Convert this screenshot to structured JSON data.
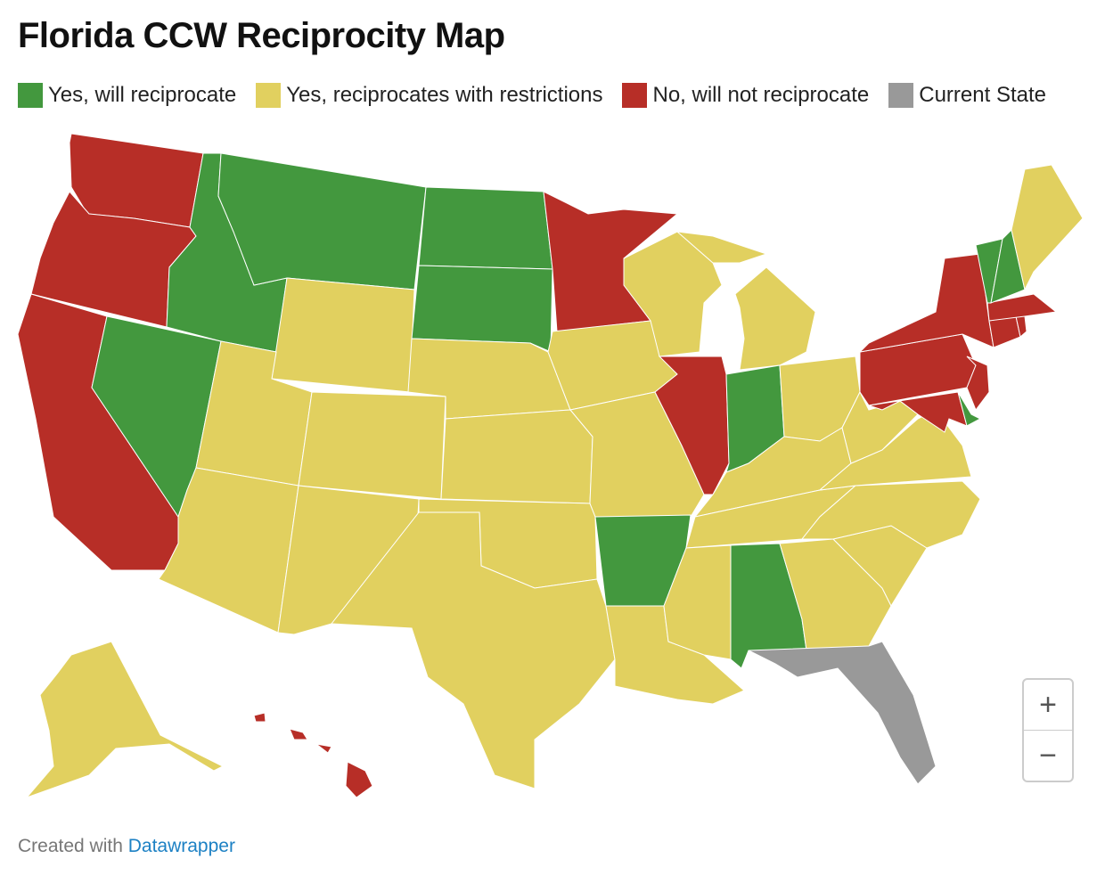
{
  "title": "Florida CCW Reciprocity Map",
  "legend": [
    {
      "key": "yes",
      "label": "Yes, will reciprocate",
      "color": "#43983e"
    },
    {
      "key": "restricted",
      "label": "Yes, reciprocates with restrictions",
      "color": "#e1d05f"
    },
    {
      "key": "no",
      "label": "No, will not reciprocate",
      "color": "#b72e27"
    },
    {
      "key": "current",
      "label": "Current State",
      "color": "#999999"
    }
  ],
  "states": {
    "WA": "no",
    "OR": "no",
    "CA": "no",
    "MN": "no",
    "IL": "no",
    "NY": "no",
    "PA": "no",
    "NJ": "no",
    "MD": "no",
    "CT": "no",
    "MA": "no",
    "RI": "no",
    "HI": "no",
    "ID": "yes",
    "MT": "yes",
    "ND": "yes",
    "SD": "yes",
    "NV": "yes",
    "AR": "yes",
    "AL": "yes",
    "IN": "yes",
    "VT": "yes",
    "NH": "yes",
    "DE": "yes",
    "FL": "current",
    "WY": "restricted",
    "UT": "restricted",
    "CO": "restricted",
    "AZ": "restricted",
    "NM": "restricted",
    "TX": "restricted",
    "OK": "restricted",
    "KS": "restricted",
    "NE": "restricted",
    "IA": "restricted",
    "MO": "restricted",
    "WI": "restricted",
    "MI": "restricted",
    "OH": "restricted",
    "KY": "restricted",
    "WV": "restricted",
    "VA": "restricted",
    "NC": "restricted",
    "SC": "restricted",
    "GA": "restricted",
    "TN": "restricted",
    "MS": "restricted",
    "LA": "restricted",
    "ME": "restricted",
    "AK": "restricted"
  },
  "zoom": {
    "in": "+",
    "out": "−"
  },
  "footer": {
    "prefix": "Created with ",
    "link": "Datawrapper"
  }
}
